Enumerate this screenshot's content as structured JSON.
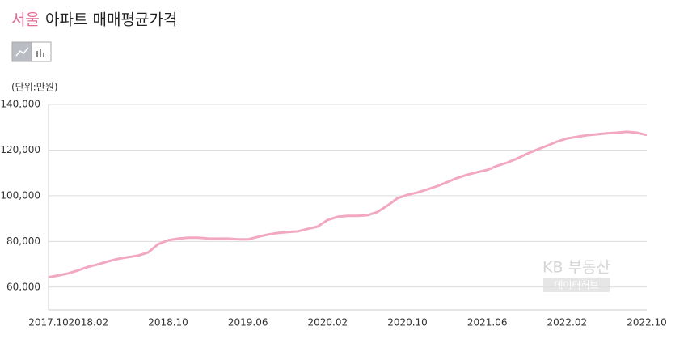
{
  "title_region": "서울",
  "title_rest": "아파트 매매평균가격",
  "watermark": {
    "brand": "KB 부동산",
    "sub": "데이터허브"
  },
  "chart_data": {
    "type": "line",
    "unit_label": "(단위:만원)",
    "categories": [
      "2017.10",
      null,
      null,
      null,
      "2018.02",
      null,
      null,
      null,
      null,
      null,
      null,
      null,
      "2018.10",
      null,
      null,
      null,
      null,
      null,
      null,
      null,
      "2019.06",
      null,
      null,
      null,
      null,
      null,
      null,
      null,
      "2020.02",
      null,
      null,
      null,
      null,
      null,
      null,
      null,
      "2020.10",
      null,
      null,
      null,
      null,
      null,
      null,
      null,
      "2021.06",
      null,
      null,
      null,
      null,
      null,
      null,
      null,
      "2022.02",
      null,
      null,
      null,
      null,
      null,
      null,
      null,
      "2022.10"
    ],
    "series": [
      {
        "name": "서울",
        "color": "#f2a7c3",
        "values": [
          64300,
          65100,
          66000,
          67400,
          68900,
          70000,
          71300,
          72400,
          73100,
          73800,
          75200,
          78800,
          80500,
          81200,
          81600,
          81600,
          81300,
          81200,
          81200,
          80900,
          80900,
          82000,
          83000,
          83700,
          84100,
          84400,
          85500,
          86500,
          89400,
          90800,
          91200,
          91200,
          91500,
          92900,
          95700,
          98900,
          100400,
          101400,
          102800,
          104200,
          106000,
          107800,
          109200,
          110300,
          111300,
          113100,
          114500,
          116300,
          118400,
          120200,
          121900,
          123700,
          125100,
          125800,
          126500,
          126900,
          127300,
          127600,
          128000,
          127600,
          126600
        ]
      }
    ],
    "ylim": [
      50000,
      140000
    ],
    "yticks": [
      {
        "value": 60000,
        "label": "60,000"
      },
      {
        "value": 80000,
        "label": "80,000"
      },
      {
        "value": 100000,
        "label": "100,000"
      },
      {
        "value": 120000,
        "label": "120,000"
      },
      {
        "value": 140000,
        "label": "140,000"
      }
    ],
    "grid": true
  }
}
